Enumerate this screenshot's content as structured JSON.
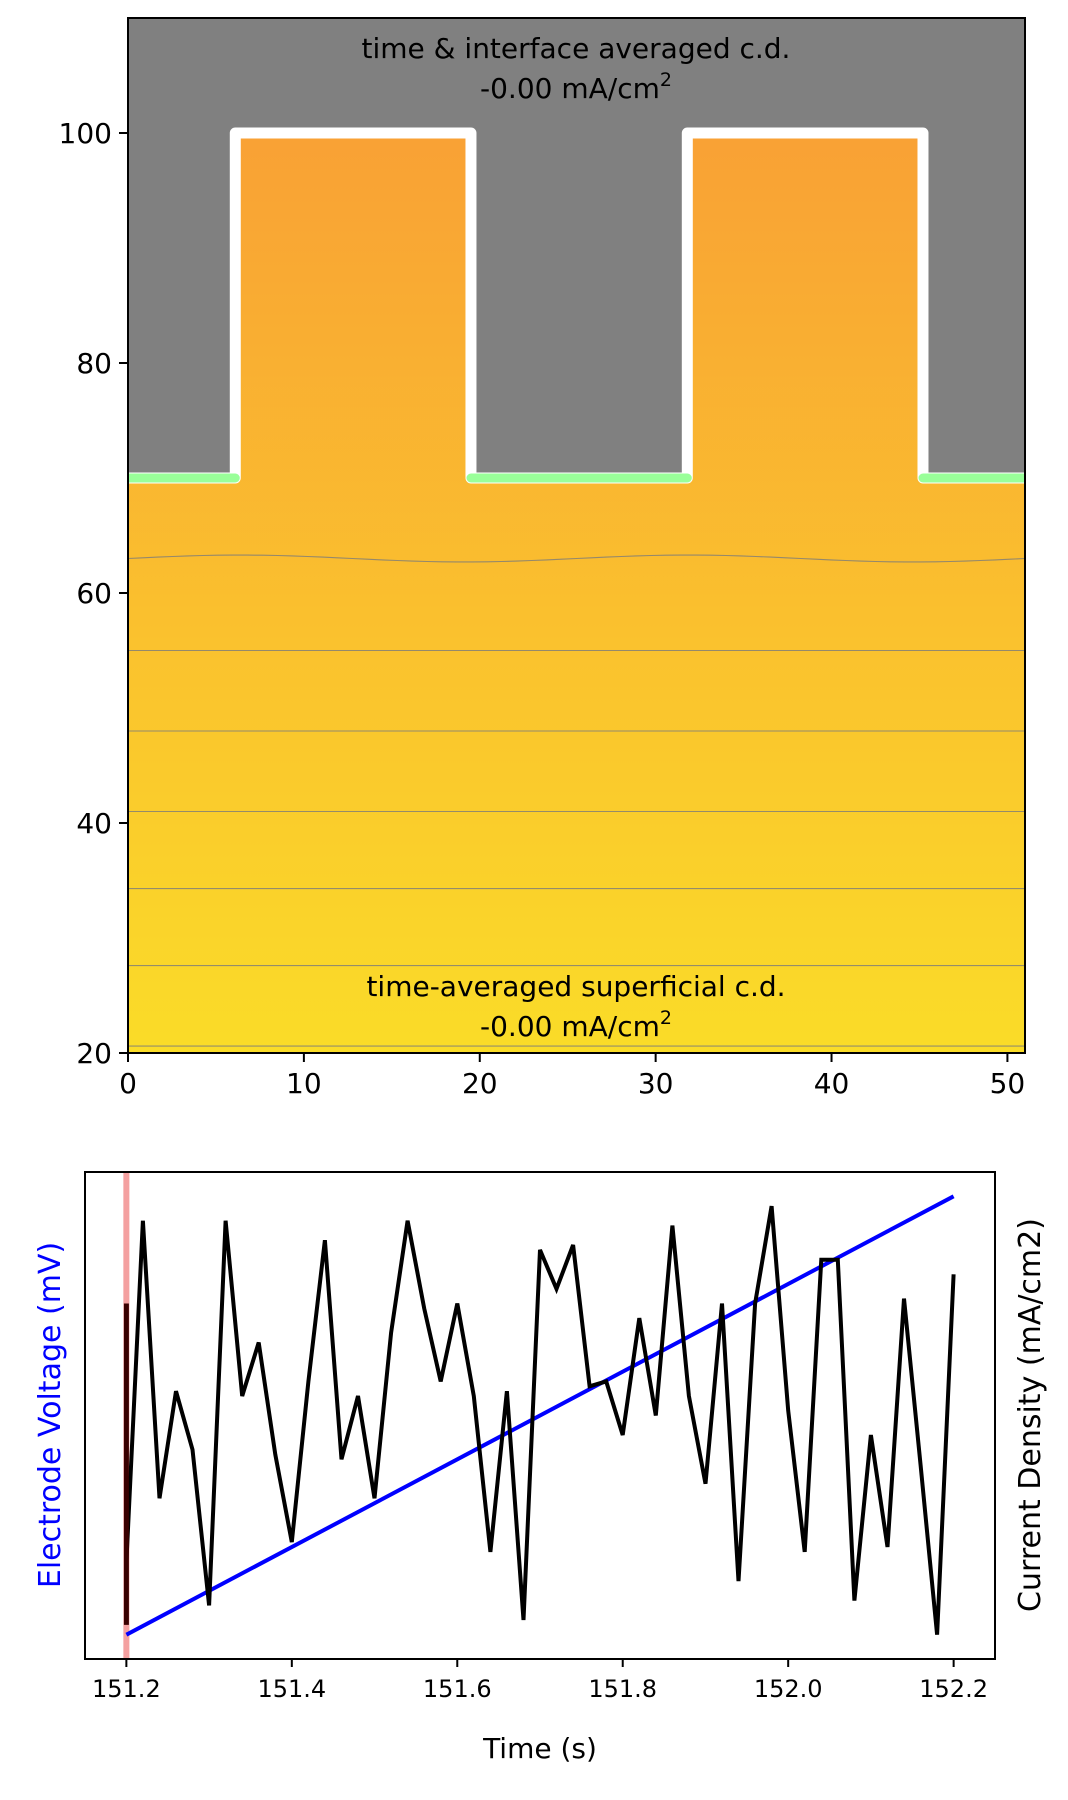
{
  "colors": {
    "electrode_gray": "#808080",
    "electrolyte_top": "#f9a135",
    "electrolyte_bottom": "#fadc28",
    "interface_outline": "#ffffff",
    "interface_green": "#99ff99",
    "interface_tint": "#ffd5d5",
    "contour_line": "#7a7a7a",
    "voltage_line": "#0000ff",
    "current_line": "#000000",
    "time_marker": "#f4a0a0",
    "current_start": "#3a0000"
  },
  "chart_data": [
    {
      "type": "heatmap",
      "title": "",
      "xlabel": "",
      "ylabel": "",
      "xlim": [
        0,
        51
      ],
      "ylim": [
        20,
        110
      ],
      "xticks": [
        "0",
        "10",
        "20",
        "30",
        "40",
        "50"
      ],
      "xtick_values": [
        0,
        10,
        20,
        30,
        40,
        50
      ],
      "yticks": [
        "20",
        "40",
        "60",
        "80",
        "100"
      ],
      "ytick_values": [
        20,
        40,
        60,
        80,
        100
      ],
      "annotations": {
        "top_line1": "time & interface averaged c.d.",
        "top_line2": "-0.00 mA/cm",
        "top_sup": "2",
        "bottom_line1": "time-averaged superficial c.d.",
        "bottom_line2": "-0.00 mA/cm",
        "bottom_sup": "2"
      },
      "interface_x": [
        0,
        6.1,
        6.1,
        19.5,
        19.5,
        31.8,
        31.8,
        45.2,
        45.2,
        51
      ],
      "interface_y": [
        70,
        70,
        100,
        100,
        70,
        70,
        100,
        100,
        70,
        70
      ],
      "contours": [
        {
          "level": 63,
          "ripple": 0.3
        },
        {
          "level": 55,
          "ripple": 0
        },
        {
          "level": 48,
          "ripple": 0
        },
        {
          "level": 41,
          "ripple": 0
        },
        {
          "level": 34.3,
          "ripple": 0
        },
        {
          "level": 27.6,
          "ripple": 0
        },
        {
          "level": 20.6,
          "ripple": 0
        }
      ]
    },
    {
      "type": "line",
      "title": "",
      "xlabel": "Time (s)",
      "ylabel_left": "Electrode Voltage (mV)",
      "ylabel_right": "Current Density (mA/cm2)",
      "xlim": [
        151.15,
        152.25
      ],
      "ylim": [
        0,
        1
      ],
      "xticks": [
        "151.2",
        "151.4",
        "151.6",
        "151.8",
        "152.0",
        "152.2"
      ],
      "xtick_values": [
        151.2,
        151.4,
        151.6,
        151.8,
        152.0,
        152.2
      ],
      "time_marker": 151.2,
      "voltage": {
        "x": [
          151.2,
          152.2
        ],
        "y": [
          0.05,
          0.95
        ]
      },
      "current_start": {
        "x": [
          151.2,
          151.2
        ],
        "y": [
          0.07,
          0.73
        ]
      },
      "current": {
        "x": [
          151.2,
          151.22,
          151.24,
          151.26,
          151.28,
          151.3,
          151.32,
          151.34,
          151.36,
          151.38,
          151.4,
          151.42,
          151.44,
          151.46,
          151.48,
          151.5,
          151.52,
          151.54,
          151.56,
          151.58,
          151.6,
          151.62,
          151.64,
          151.66,
          151.68,
          151.7,
          151.72,
          151.74,
          151.76,
          151.78,
          151.8,
          151.82,
          151.84,
          151.86,
          151.88,
          151.9,
          151.92,
          151.94,
          151.96,
          151.98,
          152.0,
          152.02,
          152.04,
          152.06,
          152.08,
          152.1,
          152.12,
          152.14,
          152.16,
          152.18,
          152.2
        ],
        "y": [
          0.2,
          0.9,
          0.33,
          0.55,
          0.43,
          0.11,
          0.9,
          0.54,
          0.65,
          0.42,
          0.24,
          0.57,
          0.86,
          0.41,
          0.54,
          0.33,
          0.67,
          0.9,
          0.72,
          0.57,
          0.73,
          0.54,
          0.22,
          0.55,
          0.08,
          0.84,
          0.76,
          0.85,
          0.56,
          0.57,
          0.46,
          0.7,
          0.5,
          0.89,
          0.54,
          0.36,
          0.73,
          0.16,
          0.73,
          0.93,
          0.51,
          0.22,
          0.82,
          0.82,
          0.12,
          0.46,
          0.23,
          0.74,
          0.4,
          0.05,
          0.79
        ]
      }
    }
  ]
}
